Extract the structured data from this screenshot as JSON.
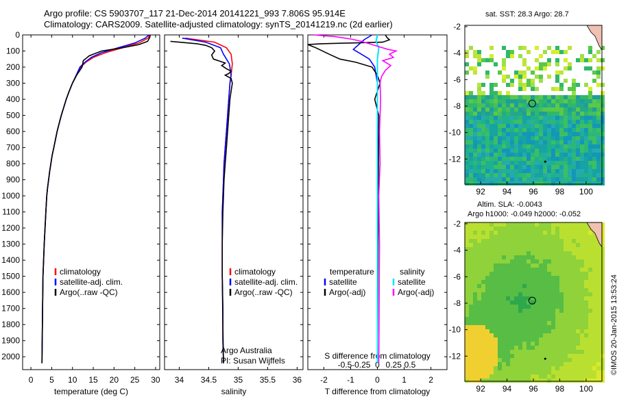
{
  "header": {
    "title_line1": "Argo profile: CS 5903707_117 21-Dec-2014 20141221_993 7.806S 95.914E",
    "title_line2": "Climatology: CARS2009. Satellite-adjusted climatology: synTS_20141219.nc (2d earlier)"
  },
  "maps": {
    "sst_title": "sat. SST: 28.3 Argo: 28.7",
    "sla_title_1": "Altim. SLA: -0.0043",
    "sla_title_2": "Argo h1000: -0.049 h2000: -0.052",
    "x_ticks": [
      "92",
      "94",
      "96",
      "98",
      "100"
    ],
    "y_ticks": [
      "-2",
      "-4",
      "-6",
      "-8",
      "-10",
      "-12"
    ],
    "argo_location": {
      "lon": 95.914,
      "lat": -7.806
    }
  },
  "credit": "©IMOS 20-Jan-2015 13:53:24",
  "colors": {
    "climatology": "#ff0000",
    "satellite_adj": "#0000ff",
    "argo": "#000000",
    "salinity_satellite": "#00e5ff",
    "salinity_argo": "#ff00ff"
  },
  "chart_data": [
    {
      "type": "line",
      "xlabel": "temperature (deg C)",
      "ylabel": "",
      "xlim": [
        -2,
        31
      ],
      "ylim": [
        2080,
        0
      ],
      "x_ticks": [
        "0",
        "5",
        "10",
        "15",
        "20",
        "25",
        "30"
      ],
      "y_ticks": [
        "0",
        "100",
        "200",
        "300",
        "400",
        "500",
        "600",
        "700",
        "800",
        "900",
        "1000",
        "1100",
        "1200",
        "1300",
        "1400",
        "1500",
        "1600",
        "1700",
        "1800",
        "1900",
        "2000"
      ],
      "legend": [
        "climatology",
        "satellite-adj. clim.",
        "Argo(..raw -QC)"
      ],
      "series": [
        {
          "name": "climatology",
          "x": [
            28.6,
            28.2,
            26,
            22,
            18,
            15,
            13.2,
            12,
            11,
            10,
            9.2,
            8.5,
            7.9,
            7.3,
            6.8,
            6.3,
            5.9,
            5.5,
            5.1,
            4.8,
            4.5,
            4.25,
            4,
            3.8,
            3.6,
            3.4,
            3.2,
            3.05,
            2.9,
            2.8,
            2.65
          ],
          "y": [
            0,
            20,
            50,
            80,
            110,
            140,
            170,
            200,
            250,
            300,
            350,
            400,
            450,
            500,
            550,
            600,
            650,
            700,
            750,
            800,
            850,
            900,
            950,
            1000,
            1100,
            1200,
            1300,
            1400,
            1500,
            1700,
            2040
          ]
        },
        {
          "name": "satellite-adj. clim.",
          "x": [
            28.4,
            27.5,
            25,
            21,
            17,
            14.5,
            13,
            11.8,
            10.9,
            10,
            9.2,
            8.5,
            7.9,
            7.3,
            6.8,
            6.3,
            5.9,
            5.5,
            5.1,
            4.8,
            4.5,
            4.25,
            4,
            3.8,
            3.6,
            3.4,
            3.2,
            3.05,
            2.9,
            2.8,
            2.65
          ],
          "y": [
            0,
            20,
            50,
            80,
            110,
            140,
            170,
            200,
            250,
            300,
            350,
            400,
            450,
            500,
            550,
            600,
            650,
            700,
            750,
            800,
            850,
            900,
            950,
            1000,
            1100,
            1200,
            1300,
            1400,
            1500,
            1700,
            2040
          ]
        },
        {
          "name": "Argo(..raw -QC)",
          "x": [
            28.7,
            28.6,
            28.1,
            26,
            22,
            17,
            14,
            12.6,
            12.3,
            11,
            10,
            9.2,
            8.5,
            7.9,
            7.3,
            6.8,
            6.3,
            5.9,
            5.5,
            5.1,
            4.8,
            4.5,
            4.25,
            4,
            3.8,
            3.6,
            3.4,
            3.2,
            3.05,
            2.9,
            2.8,
            2.65
          ],
          "y": [
            0,
            15,
            40,
            60,
            80,
            100,
            130,
            160,
            200,
            250,
            300,
            350,
            400,
            450,
            500,
            550,
            600,
            650,
            700,
            750,
            800,
            850,
            900,
            950,
            1000,
            1100,
            1200,
            1300,
            1400,
            1500,
            1700,
            2040
          ]
        }
      ]
    },
    {
      "type": "line",
      "xlabel": "salinity",
      "ylabel": "",
      "xlim": [
        33.75,
        36.1
      ],
      "ylim": [
        2080,
        0
      ],
      "x_ticks": [
        "34",
        "34.5",
        "35",
        "35.5",
        "36"
      ],
      "legend": [
        "climatology",
        "satellite-adj. clim.",
        "Argo(..raw -QC)"
      ],
      "annotation_1": "Argo Australia",
      "annotation_2": "PI: Susan Wijffels",
      "series": [
        {
          "name": "climatology",
          "x": [
            34.1,
            34.6,
            34.8,
            34.88,
            34.9,
            34.88,
            34.86,
            34.84,
            34.82,
            34.8,
            34.78,
            34.76,
            34.75,
            34.74,
            34.73,
            34.73,
            34.73,
            34.73,
            34.74,
            34.74,
            34.74,
            34.75
          ],
          "y": [
            20,
            45,
            80,
            120,
            180,
            250,
            300,
            400,
            500,
            600,
            700,
            800,
            900,
            1000,
            1100,
            1200,
            1400,
            1500,
            1700,
            1800,
            1900,
            2040
          ]
        },
        {
          "name": "satellite-adj. clim.",
          "x": [
            34.05,
            34.45,
            34.7,
            34.75,
            34.85,
            34.88,
            34.86,
            34.84,
            34.82,
            34.8,
            34.78,
            34.76,
            34.75,
            34.74,
            34.73,
            34.73,
            34.73,
            34.73,
            34.74,
            34.74,
            34.74,
            34.75
          ],
          "y": [
            20,
            45,
            80,
            120,
            180,
            250,
            300,
            400,
            500,
            600,
            700,
            800,
            900,
            1000,
            1100,
            1200,
            1400,
            1500,
            1700,
            1800,
            1900,
            2040
          ]
        },
        {
          "name": "Argo(..raw -QC)",
          "x": [
            33.85,
            34.0,
            34.3,
            34.45,
            34.55,
            34.6,
            34.55,
            34.58,
            34.7,
            34.78,
            34.72,
            34.8,
            34.88,
            34.84,
            34.78,
            34.88,
            34.9,
            34.88,
            34.86,
            34.84,
            34.82,
            34.8,
            34.78,
            34.76,
            34.75,
            34.74,
            34.73,
            34.73,
            34.74,
            34.75
          ],
          "y": [
            40,
            45,
            55,
            65,
            80,
            100,
            125,
            150,
            165,
            175,
            190,
            210,
            225,
            240,
            250,
            270,
            300,
            350,
            400,
            500,
            600,
            700,
            800,
            900,
            1000,
            1100,
            1300,
            1500,
            1800,
            2040
          ]
        }
      ]
    },
    {
      "type": "line",
      "xlabel": "T difference from climatology",
      "x2label": "S difference from climatology",
      "xlim": [
        -2.6,
        2.6
      ],
      "ylim": [
        2080,
        0
      ],
      "x_ticks": [
        "-2",
        "-1",
        "0",
        "1",
        "2"
      ],
      "x2_ticks": [
        "-0.5",
        "-0.25",
        "0",
        "0.25",
        "0.5"
      ],
      "legend_temperature_title": "temperature",
      "legend_salinity_title": "salinity",
      "legend": [
        "satellite",
        "Argo(-adj)",
        "satellite",
        "Argo(-adj)"
      ],
      "series": [
        {
          "name": "satellite",
          "x": [
            -0.2,
            -0.5,
            -0.7,
            -0.9,
            -0.6,
            -0.3,
            -0.1,
            0,
            0,
            0
          ],
          "y": [
            0,
            30,
            60,
            90,
            120,
            150,
            200,
            300,
            600,
            2040
          ]
        },
        {
          "name": "Argo(-adj)",
          "x": [
            0.3,
            0.35,
            0.45,
            0.2,
            -2.1,
            -2.6,
            -2.3,
            -1.8,
            -1.4,
            -0.8,
            -0.2,
            0,
            0.1,
            -0.1,
            0.05,
            0
          ],
          "y": [
            0,
            15,
            30,
            45,
            55,
            60,
            80,
            120,
            150,
            170,
            200,
            250,
            300,
            400,
            500,
            2040
          ]
        },
        {
          "name": "satellite",
          "x": [
            0,
            -0.05,
            0.05,
            0,
            0,
            0
          ],
          "y": [
            0,
            40,
            80,
            150,
            300,
            2040
          ]
        },
        {
          "name": "Argo(-adj)",
          "x": [
            -2.4,
            -1.6,
            -1.0,
            -0.6,
            -0.2,
            0.4,
            0.7,
            0.45,
            0.6,
            0.2,
            0.5,
            0.3,
            0.15,
            0.1,
            0.12,
            0.08,
            0.1,
            0.05,
            0.08,
            0.05
          ],
          "y": [
            0,
            10,
            25,
            40,
            60,
            90,
            100,
            120,
            140,
            160,
            190,
            220,
            260,
            300,
            400,
            600,
            800,
            1000,
            1300,
            2040
          ]
        }
      ]
    }
  ]
}
